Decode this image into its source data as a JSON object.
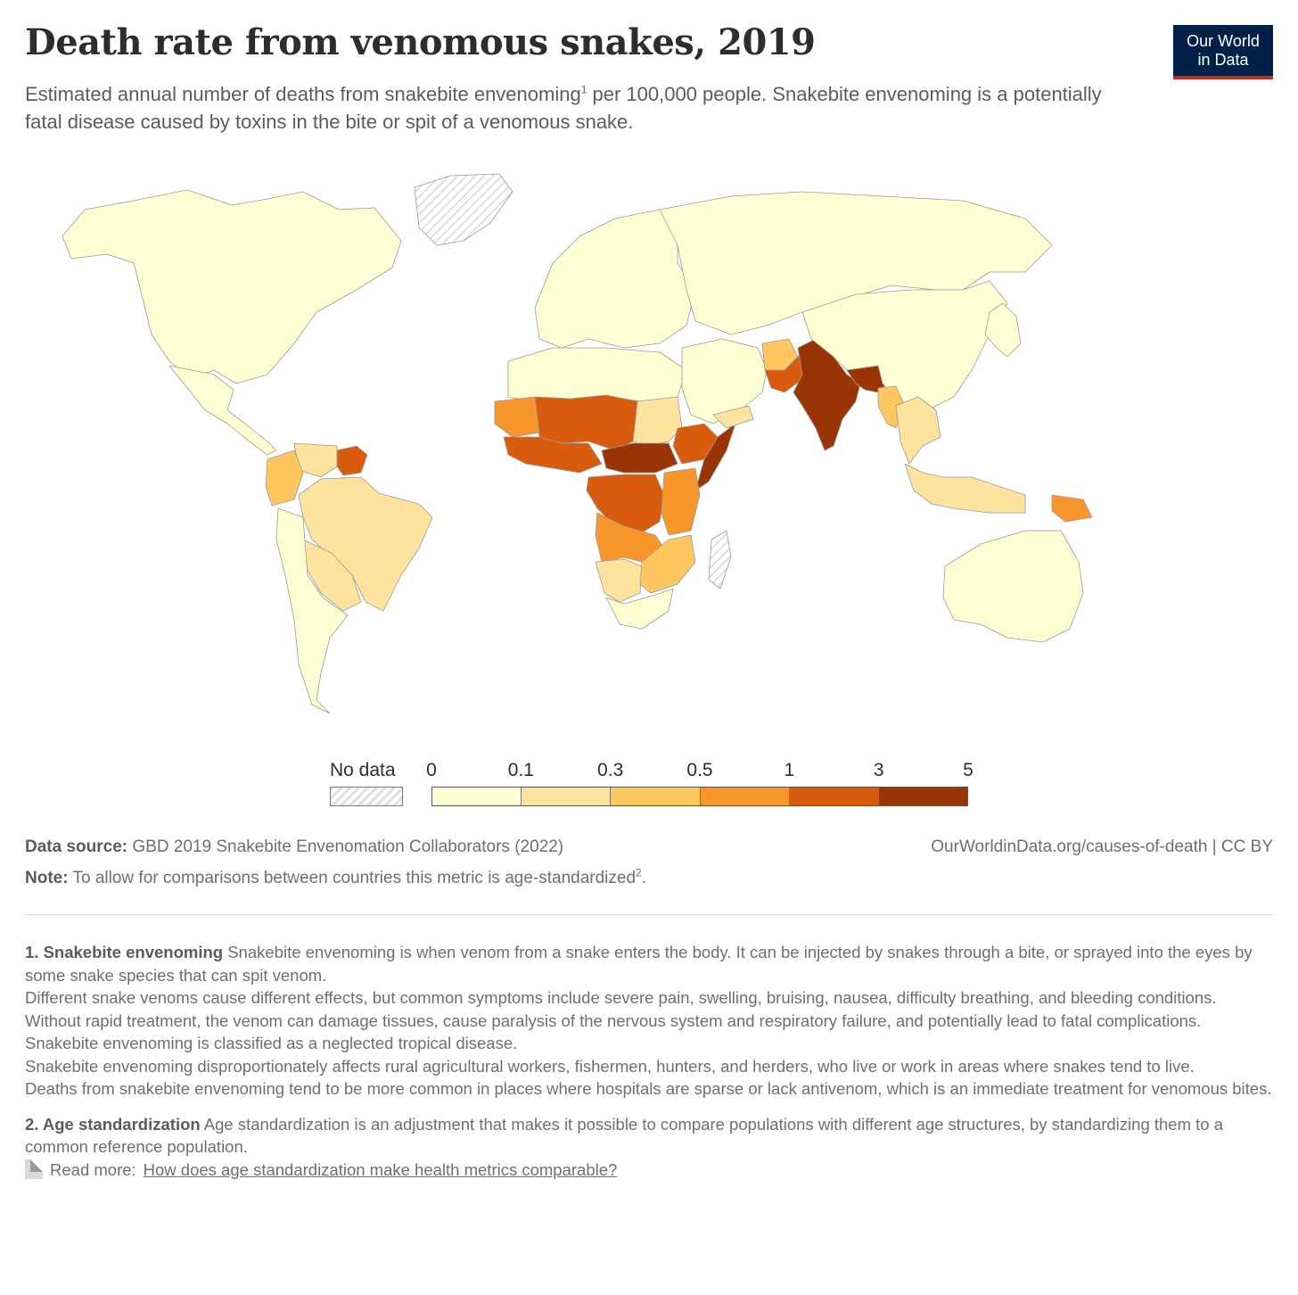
{
  "header": {
    "title": "Death rate from venomous snakes, 2019",
    "subtitle_part1": "Estimated annual number of deaths from snakebite envenoming",
    "subtitle_ref": "1",
    "subtitle_part2": " per 100,000 people. Snakebite envenoming is a potentially fatal disease caused by toxins in the bite or spit of a venomous snake."
  },
  "logo": {
    "line1": "Our World",
    "line2": "in Data",
    "bg": "#002147",
    "accent": "#ce261e"
  },
  "colors": {
    "bins": [
      "#ffffd4",
      "#fee39f",
      "#fdc65f",
      "#f9962b",
      "#d95c0e",
      "#993404"
    ],
    "nodata_fill": "hatch-grey",
    "border": "#9a9a9a"
  },
  "legend": {
    "nodata_label": "No data",
    "ticks": [
      "0",
      "0.1",
      "0.3",
      "0.5",
      "1",
      "3",
      "5"
    ]
  },
  "map_data": {
    "type": "choropleth",
    "year": 2019,
    "regions": [
      {
        "name": "North America",
        "bin": 0
      },
      {
        "name": "Greenland",
        "bin": "nodata"
      },
      {
        "name": "Mexico & Central America",
        "bin": 0
      },
      {
        "name": "Guianas",
        "bin": 4
      },
      {
        "name": "Venezuela",
        "bin": 1
      },
      {
        "name": "Brazil",
        "bin": 1
      },
      {
        "name": "Colombia & Ecuador",
        "bin": 2
      },
      {
        "name": "Bolivia & Paraguay",
        "bin": 1
      },
      {
        "name": "Southern Cone",
        "bin": 0
      },
      {
        "name": "Europe",
        "bin": 0
      },
      {
        "name": "Russia & Central Asia",
        "bin": 0
      },
      {
        "name": "North Africa",
        "bin": 0
      },
      {
        "name": "Sudan",
        "bin": 1
      },
      {
        "name": "Sahel",
        "bin": 4
      },
      {
        "name": "Mauritania & Senegal",
        "bin": 3
      },
      {
        "name": "West Africa",
        "bin": 4
      },
      {
        "name": "Central African Republic & South Sudan",
        "bin": 5
      },
      {
        "name": "Somalia",
        "bin": 5
      },
      {
        "name": "Ethiopia",
        "bin": 4
      },
      {
        "name": "DR Congo",
        "bin": 4
      },
      {
        "name": "Kenya & Tanzania",
        "bin": 3
      },
      {
        "name": "Angola & Zambia",
        "bin": 3
      },
      {
        "name": "Namibia & Botswana",
        "bin": 1
      },
      {
        "name": "Zimbabwe & Mozambique",
        "bin": 2
      },
      {
        "name": "South Africa",
        "bin": 0
      },
      {
        "name": "Madagascar",
        "bin": "nodata"
      },
      {
        "name": "Middle East",
        "bin": 0
      },
      {
        "name": "Yemen",
        "bin": 1
      },
      {
        "name": "Afghanistan",
        "bin": 2
      },
      {
        "name": "Pakistan",
        "bin": 4
      },
      {
        "name": "India",
        "bin": 5
      },
      {
        "name": "Nepal & Bangladesh",
        "bin": 5
      },
      {
        "name": "China & Mongolia",
        "bin": 0
      },
      {
        "name": "Myanmar",
        "bin": 2
      },
      {
        "name": "Thailand & Indochina",
        "bin": 1
      },
      {
        "name": "Malaysia & Indonesia",
        "bin": 1
      },
      {
        "name": "Papua New Guinea",
        "bin": 3
      },
      {
        "name": "Australia",
        "bin": 0
      },
      {
        "name": "Japan & Korea",
        "bin": 0
      }
    ]
  },
  "footer": {
    "source_label": "Data source:",
    "source_text": "GBD 2019 Snakebite Envenomation Collaborators (2022)",
    "url": "OurWorldinData.org/causes-of-death",
    "license": "CC BY",
    "note_label": "Note:",
    "note_text": "To allow for comparisons between countries this metric is  age-standardized",
    "note_ref": "2"
  },
  "footnotes": {
    "f1_title": "1. Snakebite envenoming",
    "f1_lines": [
      " Snakebite envenoming is when venom from a snake enters the body. It can be injected by snakes through a bite, or sprayed into the eyes by some snake species that can spit venom.",
      "Different snake venoms cause different effects, but common symptoms include severe pain, swelling, bruising, nausea, difficulty breathing, and bleeding conditions.",
      "Without rapid treatment, the venom can damage tissues, cause paralysis of the nervous system and respiratory failure, and potentially lead to fatal complications.",
      "Snakebite envenoming is classified as a neglected tropical disease.",
      "Snakebite envenoming disproportionately affects rural agricultural workers, fishermen, hunters, and herders, who live or work in areas where snakes tend to live.",
      "Deaths from snakebite envenoming tend to be more common in places where hospitals are sparse or lack antivenom, which is an immediate treatment for venomous bites."
    ],
    "f2_title": "2. Age standardization",
    "f2_text": " Age standardization is an adjustment that makes it possible to compare populations with different age structures, by standardizing them to a common reference population.",
    "read_more_label": "Read more:",
    "read_more_link": "How does age standardization make health metrics comparable?"
  }
}
